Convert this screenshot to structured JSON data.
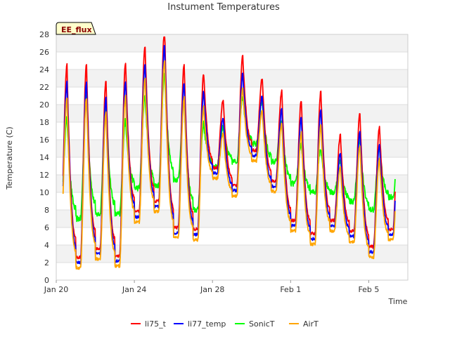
{
  "chart_data": {
    "type": "line",
    "title": "Instument Temperatures",
    "badge": "EE_flux",
    "xlabel": "Time",
    "ylabel": "Temperature (C)",
    "ylim": [
      0,
      28
    ],
    "yticks": [
      0,
      2,
      4,
      6,
      8,
      10,
      12,
      14,
      16,
      18,
      20,
      22,
      24,
      26,
      28
    ],
    "xlim": [
      0,
      18
    ],
    "xtick_labels": [
      {
        "x": 0,
        "label": "Jan 20"
      },
      {
        "x": 4,
        "label": "Jan 24"
      },
      {
        "x": 8,
        "label": "Jan 28"
      },
      {
        "x": 12,
        "label": "Feb 1"
      },
      {
        "x": 16,
        "label": "Feb 5"
      }
    ],
    "x_units": "days since Jan 20",
    "grid": true,
    "legend_position": "bottom",
    "colors": {
      "li75_t": "#ff0000",
      "li77_temp": "#0000ff",
      "SonicT": "#00ff00",
      "AirT": "#ffa500",
      "badge_bg": "#ffffcc"
    },
    "days": [
      {
        "min": 4.7,
        "max": 23.0,
        "sonic_min": 8.0,
        "sonic_max": 18.5
      },
      {
        "min": 1.8,
        "max": 23.0,
        "sonic_min": 7.0,
        "sonic_max": 20.8
      },
      {
        "min": 2.8,
        "max": 21.3,
        "sonic_min": 7.5,
        "sonic_max": 20.0
      },
      {
        "min": 2.0,
        "max": 23.2,
        "sonic_min": 7.5,
        "sonic_max": 18.2
      },
      {
        "min": 7.0,
        "max": 25.2,
        "sonic_min": 10.5,
        "sonic_max": 21.0
      },
      {
        "min": 8.2,
        "max": 27.3,
        "sonic_min": 10.8,
        "sonic_max": 23.5
      },
      {
        "min": 5.2,
        "max": 23.0,
        "sonic_min": 11.5,
        "sonic_max": 20.5
      },
      {
        "min": 5.0,
        "max": 22.0,
        "sonic_min": 8.0,
        "sonic_max": 17.8
      },
      {
        "min": 12.0,
        "max": 19.0,
        "sonic_min": 13.0,
        "sonic_max": 17.5
      },
      {
        "min": 10.0,
        "max": 24.0,
        "sonic_min": 13.5,
        "sonic_max": 21.0
      },
      {
        "min": 14.0,
        "max": 21.5,
        "sonic_min": 15.5,
        "sonic_max": 20.5
      },
      {
        "min": 10.5,
        "max": 20.0,
        "sonic_min": 13.5,
        "sonic_max": 18.0
      },
      {
        "min": 6.0,
        "max": 19.0,
        "sonic_min": 11.0,
        "sonic_max": 15.5
      },
      {
        "min": 4.5,
        "max": 20.0,
        "sonic_min": 10.0,
        "sonic_max": 15.0
      },
      {
        "min": 6.0,
        "max": 15.0,
        "sonic_min": 10.0,
        "sonic_max": 13.5
      },
      {
        "min": 4.8,
        "max": 17.5,
        "sonic_min": 9.0,
        "sonic_max": 16.0
      },
      {
        "min": 3.0,
        "max": 16.0,
        "sonic_min": 8.0,
        "sonic_max": 15.0
      },
      {
        "min": 5.0,
        "max": 17.0,
        "sonic_min": 9.5,
        "sonic_max": 15.0
      }
    ],
    "series": [
      {
        "key": "li75_t",
        "name": "li75_t",
        "color": "#ff0000",
        "offset_min": 0.8,
        "offset_max": 1.5
      },
      {
        "key": "li77_temp",
        "name": "li77_temp",
        "color": "#0000ff",
        "offset_min": 0.2,
        "offset_max": -0.5
      },
      {
        "key": "SonicT",
        "name": "SonicT",
        "color": "#00ff00",
        "sonic": true
      },
      {
        "key": "AirT",
        "name": "AirT",
        "color": "#ffa500",
        "offset_min": -0.4,
        "offset_max": -2.2
      }
    ],
    "x_start": 0.35,
    "x_end": 17.35
  }
}
